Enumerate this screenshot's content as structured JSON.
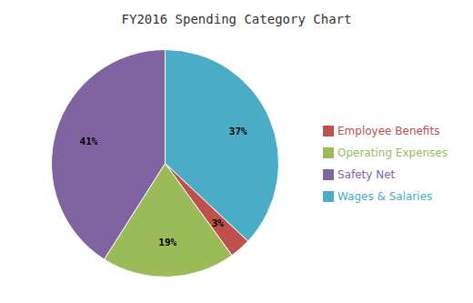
{
  "chart_data": {
    "type": "pie",
    "title": "FY2016 Spending Category Chart",
    "categories": [
      "Wages & Salaries",
      "Employee Benefits",
      "Operating Expenses",
      "Safety Net"
    ],
    "values": [
      37,
      3,
      19,
      41
    ],
    "value_labels": [
      "37%",
      "3%",
      "19%",
      "41%"
    ],
    "colors": [
      "#4bacc6",
      "#c0504d",
      "#9bbb59",
      "#8064a2"
    ],
    "data_labels": true,
    "legend": "right"
  }
}
